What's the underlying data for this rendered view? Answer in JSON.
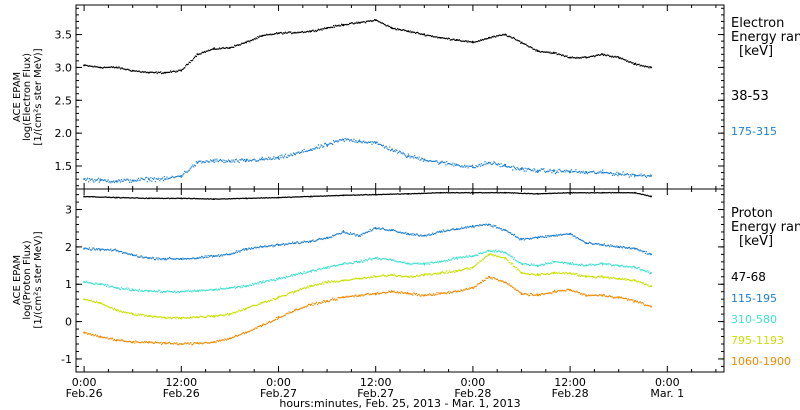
{
  "figure": {
    "xlabel": "hours:minutes, Feb. 25, 2013 - Mar. 1, 2013",
    "xtick_labels": [
      {
        "time": "0:00",
        "date": "Feb.26",
        "hours": 0
      },
      {
        "time": "12:00",
        "date": "Feb.26",
        "hours": 12
      },
      {
        "time": "0:00",
        "date": "Feb.27",
        "hours": 24
      },
      {
        "time": "12:00",
        "date": "Feb.27",
        "hours": 36
      },
      {
        "time": "0:00",
        "date": "Feb.28",
        "hours": 48
      },
      {
        "time": "12:00",
        "date": "Feb.28",
        "hours": 60
      },
      {
        "time": "0:00",
        "date": "Mar. 1",
        "hours": 72
      }
    ]
  },
  "chart_data": [
    {
      "type": "scatter",
      "panel": "electron",
      "ylabel_lines": [
        "ACE EPAM",
        "log(Electron Flux)",
        "[1/(cm²s ster MeV)]"
      ],
      "legend_title_lines": [
        "Electron",
        "Energy ranges",
        "[keV]"
      ],
      "x_unit": "hours from Feb. 26 0:00",
      "xlim": [
        -1,
        79
      ],
      "ylim": [
        1.15,
        3.95
      ],
      "yticks": [
        1.5,
        2.0,
        2.5,
        3.0,
        3.5
      ],
      "ytick_labels": [
        "1.5",
        "2.0",
        "2.5",
        "3.0",
        "3.5"
      ],
      "series": [
        {
          "name": "38-53",
          "color": "#000000",
          "x": [
            0,
            2,
            4,
            6,
            8,
            10,
            12,
            14,
            16,
            18,
            20,
            22,
            24,
            26,
            28,
            30,
            32,
            34,
            36,
            38,
            40,
            42,
            44,
            46,
            48,
            50,
            52,
            54,
            56,
            58,
            60,
            62,
            64,
            66,
            68,
            70
          ],
          "values": [
            3.03,
            3.0,
            3.0,
            2.95,
            2.92,
            2.92,
            2.95,
            3.2,
            3.28,
            3.3,
            3.38,
            3.48,
            3.52,
            3.53,
            3.55,
            3.6,
            3.65,
            3.68,
            3.72,
            3.6,
            3.55,
            3.5,
            3.45,
            3.42,
            3.38,
            3.45,
            3.5,
            3.38,
            3.25,
            3.22,
            3.15,
            3.15,
            3.2,
            3.15,
            3.05,
            3.0
          ]
        },
        {
          "name": "175-315",
          "color": "#1e7fd0",
          "x": [
            0,
            2,
            4,
            6,
            8,
            10,
            12,
            14,
            16,
            18,
            20,
            22,
            24,
            26,
            28,
            30,
            32,
            34,
            36,
            38,
            40,
            42,
            44,
            46,
            48,
            50,
            52,
            54,
            56,
            58,
            60,
            62,
            64,
            66,
            68,
            70
          ],
          "values": [
            1.3,
            1.28,
            1.27,
            1.28,
            1.3,
            1.3,
            1.35,
            1.55,
            1.58,
            1.57,
            1.58,
            1.6,
            1.62,
            1.68,
            1.75,
            1.82,
            1.9,
            1.88,
            1.85,
            1.75,
            1.65,
            1.6,
            1.55,
            1.52,
            1.48,
            1.55,
            1.5,
            1.45,
            1.43,
            1.42,
            1.42,
            1.4,
            1.4,
            1.38,
            1.36,
            1.35
          ]
        }
      ]
    },
    {
      "type": "scatter",
      "panel": "proton",
      "ylabel_lines": [
        "ACE EPAM",
        "log(Proton Flux)",
        "[1/(cm²s ster MeV)]"
      ],
      "legend_title_lines": [
        "Proton",
        "Energy ranges",
        "[keV]"
      ],
      "x_unit": "hours from Feb. 26 0:00",
      "xlim": [
        -1,
        79
      ],
      "ylim": [
        -1.35,
        3.55
      ],
      "yticks": [
        -1,
        0,
        1,
        2,
        3
      ],
      "ytick_labels": [
        "-1",
        "0",
        "1",
        "2",
        "3"
      ],
      "series": [
        {
          "name": "47-68",
          "color": "#000000",
          "x": [
            0,
            4,
            8,
            12,
            16,
            20,
            24,
            28,
            32,
            36,
            40,
            44,
            48,
            52,
            56,
            60,
            64,
            68,
            70
          ],
          "values": [
            3.35,
            3.32,
            3.3,
            3.3,
            3.28,
            3.3,
            3.32,
            3.35,
            3.38,
            3.4,
            3.42,
            3.45,
            3.45,
            3.45,
            3.42,
            3.45,
            3.45,
            3.45,
            3.35
          ]
        },
        {
          "name": "115-195",
          "color": "#1e7fd0",
          "x": [
            0,
            2,
            4,
            6,
            8,
            10,
            12,
            14,
            16,
            18,
            20,
            22,
            24,
            26,
            28,
            30,
            32,
            34,
            36,
            38,
            40,
            42,
            44,
            46,
            48,
            50,
            52,
            54,
            56,
            58,
            60,
            62,
            64,
            66,
            68,
            70
          ],
          "values": [
            1.95,
            1.93,
            1.9,
            1.78,
            1.7,
            1.68,
            1.68,
            1.7,
            1.75,
            1.8,
            1.95,
            2.0,
            2.05,
            2.1,
            2.15,
            2.25,
            2.4,
            2.3,
            2.5,
            2.45,
            2.35,
            2.3,
            2.4,
            2.48,
            2.55,
            2.6,
            2.45,
            2.2,
            2.25,
            2.3,
            2.35,
            2.1,
            2.05,
            2.0,
            1.95,
            1.8
          ]
        },
        {
          "name": "310-580",
          "color": "#40e0d0",
          "x": [
            0,
            2,
            4,
            6,
            8,
            10,
            12,
            14,
            16,
            18,
            20,
            22,
            24,
            26,
            28,
            30,
            32,
            34,
            36,
            38,
            40,
            42,
            44,
            46,
            48,
            50,
            52,
            54,
            56,
            58,
            60,
            62,
            64,
            66,
            68,
            70
          ],
          "values": [
            1.05,
            1.0,
            0.9,
            0.85,
            0.82,
            0.8,
            0.8,
            0.82,
            0.85,
            0.9,
            0.95,
            1.05,
            1.15,
            1.25,
            1.35,
            1.45,
            1.55,
            1.6,
            1.7,
            1.65,
            1.55,
            1.55,
            1.6,
            1.7,
            1.75,
            1.9,
            1.85,
            1.55,
            1.5,
            1.6,
            1.55,
            1.5,
            1.55,
            1.5,
            1.45,
            1.3
          ]
        },
        {
          "name": "795-1193",
          "color": "#c8e000",
          "x": [
            0,
            2,
            4,
            6,
            8,
            10,
            12,
            14,
            16,
            18,
            20,
            22,
            24,
            26,
            28,
            30,
            32,
            34,
            36,
            38,
            40,
            42,
            44,
            46,
            48,
            50,
            52,
            54,
            56,
            58,
            60,
            62,
            64,
            66,
            68,
            70
          ],
          "values": [
            0.6,
            0.5,
            0.3,
            0.2,
            0.15,
            0.1,
            0.1,
            0.12,
            0.15,
            0.2,
            0.35,
            0.5,
            0.65,
            0.8,
            0.95,
            1.05,
            1.1,
            1.15,
            1.2,
            1.25,
            1.2,
            1.25,
            1.3,
            1.35,
            1.45,
            1.8,
            1.7,
            1.3,
            1.25,
            1.3,
            1.3,
            1.2,
            1.2,
            1.15,
            1.1,
            0.95
          ]
        },
        {
          "name": "1060-1900",
          "color": "#f08a00",
          "x": [
            0,
            2,
            4,
            6,
            8,
            10,
            12,
            14,
            16,
            18,
            20,
            22,
            24,
            26,
            28,
            30,
            32,
            34,
            36,
            38,
            40,
            42,
            44,
            46,
            48,
            50,
            52,
            54,
            56,
            58,
            60,
            62,
            64,
            66,
            68,
            70
          ],
          "values": [
            -0.3,
            -0.4,
            -0.5,
            -0.55,
            -0.55,
            -0.58,
            -0.6,
            -0.58,
            -0.55,
            -0.45,
            -0.3,
            -0.1,
            0.1,
            0.3,
            0.45,
            0.55,
            0.65,
            0.7,
            0.75,
            0.8,
            0.75,
            0.7,
            0.75,
            0.8,
            0.9,
            1.2,
            1.05,
            0.75,
            0.7,
            0.8,
            0.85,
            0.7,
            0.7,
            0.65,
            0.55,
            0.4
          ]
        }
      ]
    }
  ]
}
